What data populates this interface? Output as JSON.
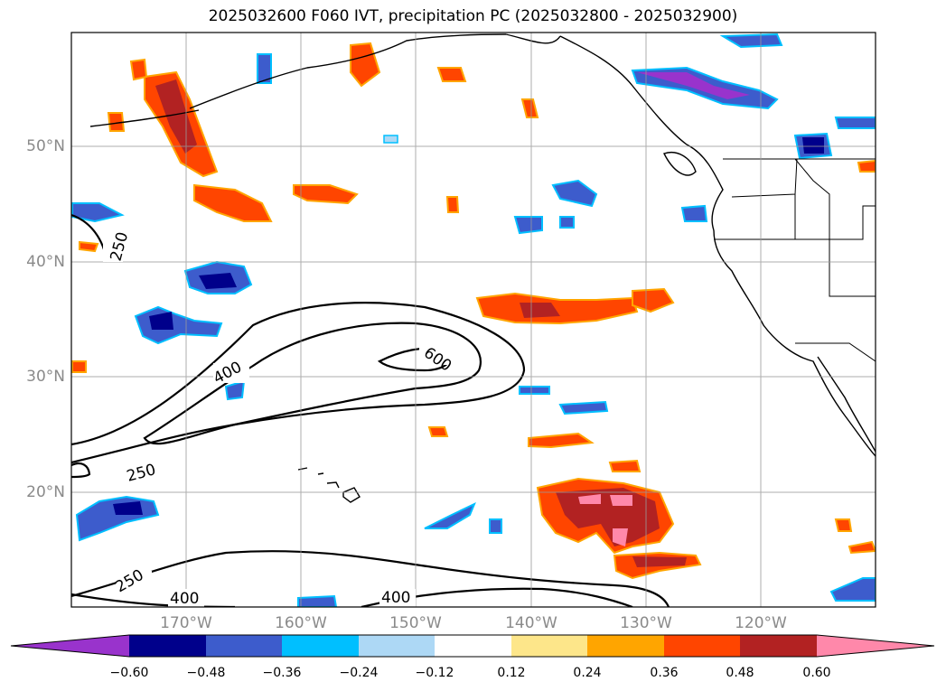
{
  "title": "2025032600 F060 IVT, precipitation PC (2025032800 - 2025032900)",
  "map": {
    "lon_range": [
      -180,
      -110
    ],
    "lat_range": [
      10,
      60
    ],
    "lat_ticks": [
      "50°N",
      "40°N",
      "30°N",
      "20°N"
    ],
    "lon_ticks": [
      "170°W",
      "160°W",
      "150°W",
      "140°W",
      "130°W",
      "120°W"
    ],
    "contour_labels": [
      "250",
      "400",
      "600",
      "250",
      "250",
      "400",
      "400"
    ]
  },
  "colorbar": {
    "ticks": [
      "−0.60",
      "−0.48",
      "−0.36",
      "−0.24",
      "−0.12",
      "0.12",
      "0.24",
      "0.36",
      "0.48",
      "0.60"
    ],
    "colors": [
      "#9933cc",
      "#00008b",
      "#3d5ccc",
      "#00bfff",
      "#add8f5",
      "#ffffff",
      "#fde68a",
      "#ffa500",
      "#ff4500",
      "#b22222",
      "#ff88aa"
    ]
  }
}
